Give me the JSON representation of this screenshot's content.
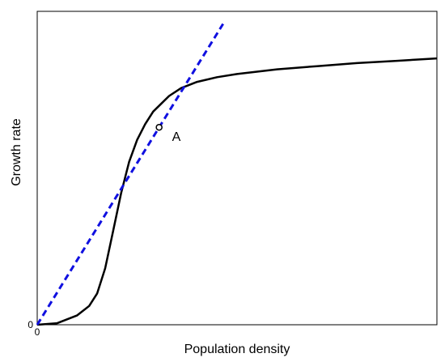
{
  "chart_data": {
    "type": "line",
    "xlabel": "Population density",
    "ylabel": "Growth rate",
    "x_ticks": [
      "0"
    ],
    "y_ticks": [
      "0"
    ],
    "xlim": [
      0,
      10
    ],
    "ylim": [
      0,
      10
    ],
    "grid": false,
    "series": [
      {
        "style": "solid",
        "color": "#000000",
        "x": [
          0,
          0.5,
          1.0,
          1.3,
          1.5,
          1.7,
          1.9,
          2.1,
          2.3,
          2.5,
          2.7,
          2.9,
          3.1,
          3.3,
          3.6,
          4.0,
          4.5,
          5.0,
          6.0,
          7.0,
          8.0,
          9.0,
          10.0
        ],
        "y": [
          0,
          0.05,
          0.3,
          0.6,
          1.0,
          1.8,
          3.0,
          4.2,
          5.2,
          5.9,
          6.4,
          6.8,
          7.05,
          7.3,
          7.55,
          7.75,
          7.9,
          8.0,
          8.15,
          8.25,
          8.35,
          8.42,
          8.5
        ]
      },
      {
        "style": "dashed",
        "color": "#1010e0",
        "x": [
          0,
          4.65
        ],
        "y": [
          0,
          9.6
        ]
      }
    ],
    "annotations": [
      {
        "label": "A",
        "x": 3.05,
        "y": 6.3
      }
    ]
  }
}
